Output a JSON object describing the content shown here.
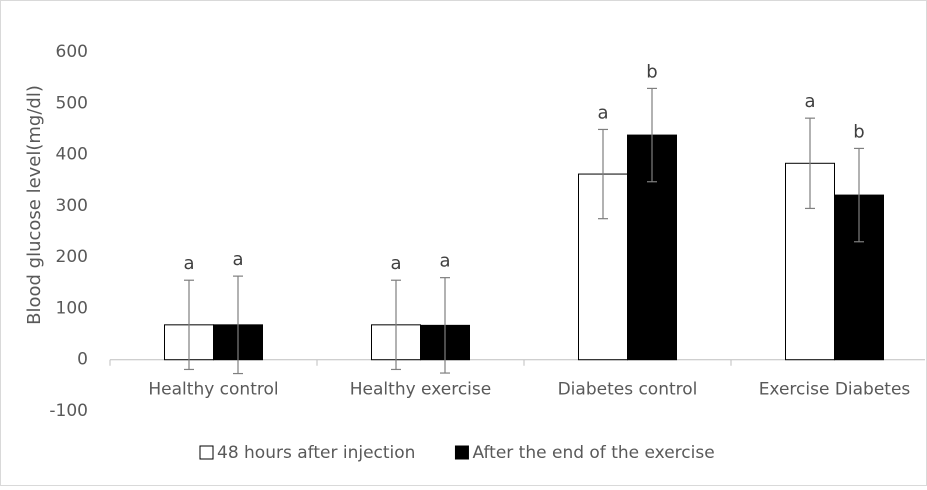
{
  "chart_data": {
    "type": "bar",
    "ylabel": "Blood glucose level(mg/dl)",
    "categories": [
      "Healthy control",
      "Healthy exercise",
      "Diabetes control",
      "Exercise Diabetes"
    ],
    "series": [
      {
        "name": "48 hours after injection",
        "color": "#ffffff",
        "values": [
          68,
          68,
          362,
          383
        ],
        "errors": [
          87,
          87,
          87,
          88
        ],
        "labels": [
          "a",
          "a",
          "a",
          "a"
        ]
      },
      {
        "name": "After the end of the exercise",
        "color": "#000000",
        "values": [
          68,
          67,
          438,
          321
        ],
        "errors": [
          95,
          93,
          91,
          91
        ],
        "labels": [
          "a",
          "a",
          "b",
          "b"
        ]
      }
    ],
    "ylim": [
      -100,
      600
    ],
    "yticks": [
      -100,
      0,
      100,
      200,
      300,
      400,
      500,
      600
    ],
    "grid": false,
    "legend": "bottom"
  }
}
